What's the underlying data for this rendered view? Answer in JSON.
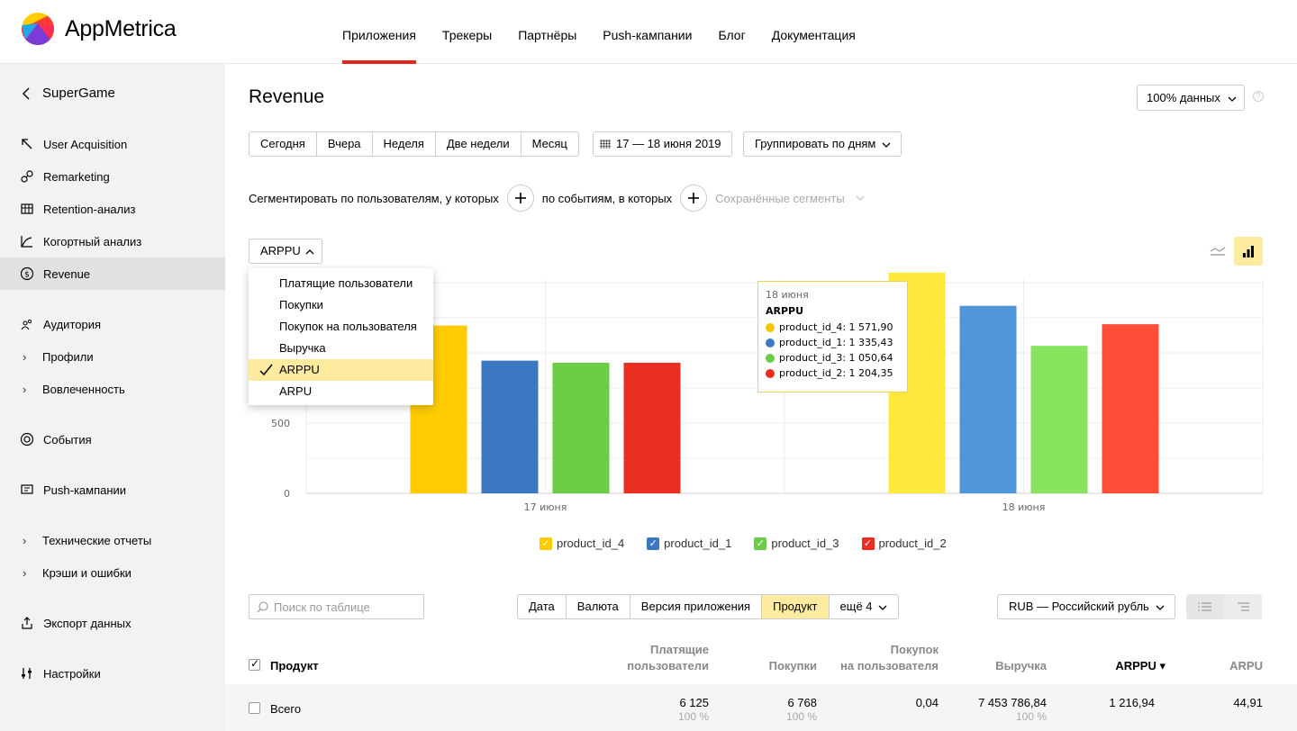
{
  "app": {
    "name": "AppMetrica"
  },
  "topnav": [
    "Приложения",
    "Трекеры",
    "Партнёры",
    "Push-кампании",
    "Блог",
    "Документация"
  ],
  "sidebar": {
    "back_label": "SuperGame",
    "items": [
      {
        "label": "User Acquisition",
        "icon": "user-acquisition-icon"
      },
      {
        "label": "Remarketing",
        "icon": "remarketing-icon"
      },
      {
        "label": "Retention-анализ",
        "icon": "retention-grid-icon"
      },
      {
        "label": "Когортный анализ",
        "icon": "cohort-chart-icon"
      },
      {
        "label": "Revenue",
        "icon": "dollar-icon"
      },
      {
        "label": "Аудитория",
        "icon": "audience-icon"
      },
      {
        "label": "Профили",
        "icon": "chevron-right-icon"
      },
      {
        "label": "Вовлеченность",
        "icon": "chevron-right-icon"
      },
      {
        "label": "События",
        "icon": "target-icon"
      },
      {
        "label": "Push-кампании",
        "icon": "message-icon"
      },
      {
        "label": "Технические отчеты",
        "icon": "chevron-right-icon"
      },
      {
        "label": "Крэши и ошибки",
        "icon": "chevron-right-icon"
      },
      {
        "label": "Экспорт данных",
        "icon": "export-icon"
      },
      {
        "label": "Настройки",
        "icon": "settings-sliders-icon"
      }
    ]
  },
  "page": {
    "title": "Revenue",
    "data_sample": "100% данных",
    "help": "?"
  },
  "periods": [
    "Сегодня",
    "Вчера",
    "Неделя",
    "Две недели",
    "Месяц"
  ],
  "date_range": "17 — 18 июня 2019",
  "group_by": "Группировать по дням",
  "segment": {
    "by_users": "Сегментировать по пользователям, у которых",
    "by_events": "по событиям, в которых",
    "saved": "Сохранённые сегменты"
  },
  "metric": {
    "selected": "ARPPU",
    "options": [
      "Платящие пользователи",
      "Покупки",
      "Покупок на пользователя",
      "Выручка",
      "ARPPU",
      "ARPU"
    ]
  },
  "chart_data": {
    "type": "bar",
    "categories": [
      "17 июня",
      "18 июня"
    ],
    "series": [
      {
        "name": "product_id_4",
        "values": [
          1195,
          1571.9
        ]
      },
      {
        "name": "product_id_1",
        "values": [
          945,
          1335.43
        ]
      },
      {
        "name": "product_id_3",
        "values": [
          930,
          1050.64
        ]
      },
      {
        "name": "product_id_2",
        "values": [
          930,
          1204.35
        ]
      }
    ],
    "colors": [
      [
        "#fecc00",
        "#ffe93b"
      ],
      [
        "#3b78c1",
        "#4f95d9"
      ],
      [
        "#6ccc46",
        "#88e35f"
      ],
      [
        "#e92f20",
        "#ff4d38"
      ]
    ],
    "y_ticks": [
      0,
      500
    ],
    "ylim": [
      0,
      1590
    ],
    "grid": true,
    "legend": "bottom"
  },
  "tooltip": {
    "date": "18 июня",
    "metric": "ARPPU",
    "rows": [
      {
        "label": "product_id_4: 1 571,90",
        "color": "#f5c400"
      },
      {
        "label": "product_id_1: 1 335,43",
        "color": "#3b78c1"
      },
      {
        "label": "product_id_3: 1 050,64",
        "color": "#6ccc46"
      },
      {
        "label": "product_id_2: 1 204,35",
        "color": "#e92f20"
      }
    ]
  },
  "legend": [
    {
      "label": "product_id_4",
      "color": "#fecc00"
    },
    {
      "label": "product_id_1",
      "color": "#3b78c1"
    },
    {
      "label": "product_id_3",
      "color": "#6ccc46"
    },
    {
      "label": "product_id_2",
      "color": "#e92f20"
    }
  ],
  "table": {
    "search_placeholder": "Поиск по таблице",
    "dimensions": [
      "Дата",
      "Валюта",
      "Версия приложения",
      "Продукт",
      "ещё 4"
    ],
    "currency": "RUB — Российский рубль",
    "headers": {
      "product": "Продукт",
      "paying_1": "Платящие",
      "paying_2": "пользователи",
      "purchases": "Покупки",
      "per_user_1": "Покупок",
      "per_user_2": "на пользователя",
      "revenue": "Выручка",
      "arppu": "ARPPU ▾",
      "arpu": "ARPU"
    },
    "total": {
      "label": "Всего",
      "paying": "6 125",
      "paying_pct": "100 %",
      "purchases": "6 768",
      "purchases_pct": "100 %",
      "per_user": "0,04",
      "revenue": "7 453 786,84",
      "revenue_pct": "100 %",
      "arppu": "1 216,94",
      "arpu": "44,91"
    }
  }
}
